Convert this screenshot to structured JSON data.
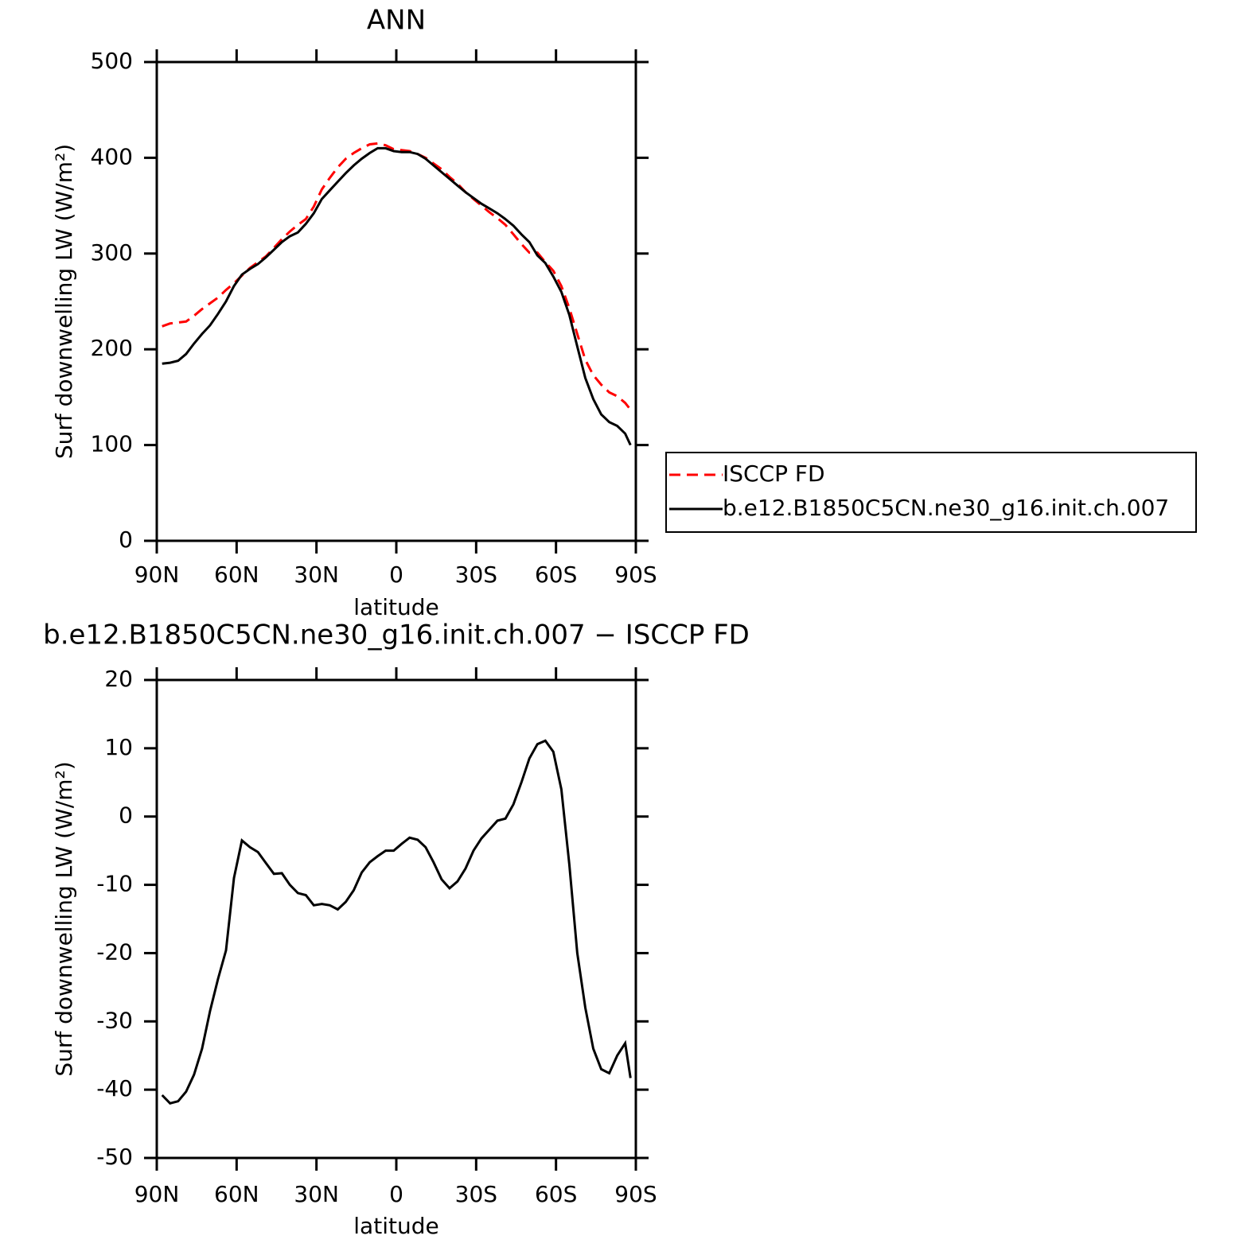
{
  "chart_data": [
    {
      "type": "line",
      "title": "ANN",
      "x_label": "latitude",
      "y_label": "Surf downwelling LW (W/m²)",
      "x": [
        88,
        85,
        82,
        79,
        76,
        73,
        70,
        67,
        64,
        61,
        58,
        55,
        52,
        49,
        46,
        43,
        40,
        37,
        34,
        31,
        28,
        25,
        22,
        19,
        16,
        13,
        10,
        7,
        4,
        1,
        -2,
        -5,
        -8,
        -11,
        -14,
        -17,
        -20,
        -23,
        -26,
        -29,
        -32,
        -35,
        -38,
        -41,
        -44,
        -47,
        -50,
        -53,
        -56,
        -59,
        -62,
        -65,
        -68,
        -71,
        -74,
        -77,
        -80,
        -83,
        -86,
        -88
      ],
      "xlim": [
        90,
        -90
      ],
      "xticks": [
        {
          "value": 90,
          "label": "90N"
        },
        {
          "value": 60,
          "label": "60N"
        },
        {
          "value": 30,
          "label": "30N"
        },
        0,
        {
          "value": -30,
          "label": "30S"
        },
        {
          "value": -60,
          "label": "60S"
        },
        {
          "value": -90,
          "label": "90S"
        }
      ],
      "ylim": [
        0,
        500
      ],
      "yticks": [
        0,
        100,
        200,
        300,
        400,
        500
      ],
      "legend": "outside right",
      "series": [
        {
          "name": "ISCCP FD",
          "color": "#ff0000",
          "line_style": "dashed",
          "values": [
            224,
            227,
            228,
            229,
            235,
            242,
            248,
            254,
            262,
            269,
            277,
            285,
            291,
            297,
            306,
            315,
            323,
            330,
            336,
            349,
            367,
            379,
            390,
            399,
            405,
            410,
            414,
            415,
            413,
            409,
            408,
            407,
            404,
            400,
            394,
            388,
            380,
            373,
            364,
            357,
            350,
            343,
            337,
            330,
            320,
            310,
            301,
            301,
            291,
            282,
            266,
            243,
            216,
            189,
            173,
            163,
            155,
            151,
            144,
            137
          ]
        },
        {
          "name": "b.e12.B1850C5CN.ne30_g16.init.ch.007",
          "color": "#000000",
          "line_style": "solid",
          "values": [
            185,
            186,
            188,
            195,
            206,
            216,
            225,
            237,
            250,
            266,
            278,
            284,
            289,
            296,
            304,
            312,
            318,
            322,
            331,
            342,
            357,
            366,
            375,
            384,
            392,
            399,
            405,
            410,
            410,
            407,
            406,
            406,
            404,
            399,
            392,
            385,
            378,
            371,
            364,
            358,
            352,
            347,
            342,
            336,
            329,
            320,
            312,
            298,
            290,
            276,
            260,
            236,
            203,
            170,
            148,
            132,
            124,
            120,
            112,
            100
          ]
        }
      ]
    },
    {
      "type": "line",
      "title": "b.e12.B1850C5CN.ne30_g16.init.ch.007 − ISCCP FD",
      "x_label": "latitude",
      "y_label": "Surf downwelling LW (W/m²)",
      "x": [
        88,
        85,
        82,
        79,
        76,
        73,
        70,
        67,
        64,
        61,
        58,
        55,
        52,
        49,
        46,
        43,
        40,
        37,
        34,
        31,
        28,
        25,
        22,
        19,
        16,
        13,
        10,
        7,
        4,
        1,
        -2,
        -5,
        -8,
        -11,
        -14,
        -17,
        -20,
        -23,
        -26,
        -29,
        -32,
        -35,
        -38,
        -41,
        -44,
        -47,
        -50,
        -53,
        -56,
        -59,
        -62,
        -65,
        -68,
        -71,
        -74,
        -77,
        -80,
        -83,
        -86,
        -88
      ],
      "xlim": [
        90,
        -90
      ],
      "xticks": [
        {
          "value": 90,
          "label": "90N"
        },
        {
          "value": 60,
          "label": "60N"
        },
        {
          "value": 30,
          "label": "30N"
        },
        0,
        {
          "value": -30,
          "label": "30S"
        },
        {
          "value": -60,
          "label": "60S"
        },
        {
          "value": -90,
          "label": "90S"
        }
      ],
      "ylim": [
        -50,
        20
      ],
      "yticks": [
        -50,
        -40,
        -30,
        -20,
        -10,
        0,
        10,
        20
      ],
      "series": [
        {
          "color": "#000000",
          "line_style": "solid",
          "values": [
            -40.8,
            -42,
            -41.7,
            -40.3,
            -37.8,
            -34,
            -28.5,
            -23.8,
            -19.6,
            -9,
            -3.5,
            -4.5,
            -5.2,
            -6.8,
            -8.4,
            -8.3,
            -10,
            -11.2,
            -11.5,
            -13,
            -12.8,
            -13,
            -13.6,
            -12.5,
            -10.8,
            -8.2,
            -6.7,
            -5.8,
            -5,
            -5,
            -4,
            -3.1,
            -3.4,
            -4.5,
            -6.7,
            -9.2,
            -10.5,
            -9.5,
            -7.6,
            -5,
            -3.2,
            -1.9,
            -0.6,
            -0.3,
            1.8,
            5,
            8.5,
            10.6,
            11.1,
            9.5,
            4,
            -7,
            -20,
            -28,
            -34,
            -37,
            -37.6,
            -35,
            -33.2,
            -38.3
          ]
        }
      ]
    }
  ]
}
